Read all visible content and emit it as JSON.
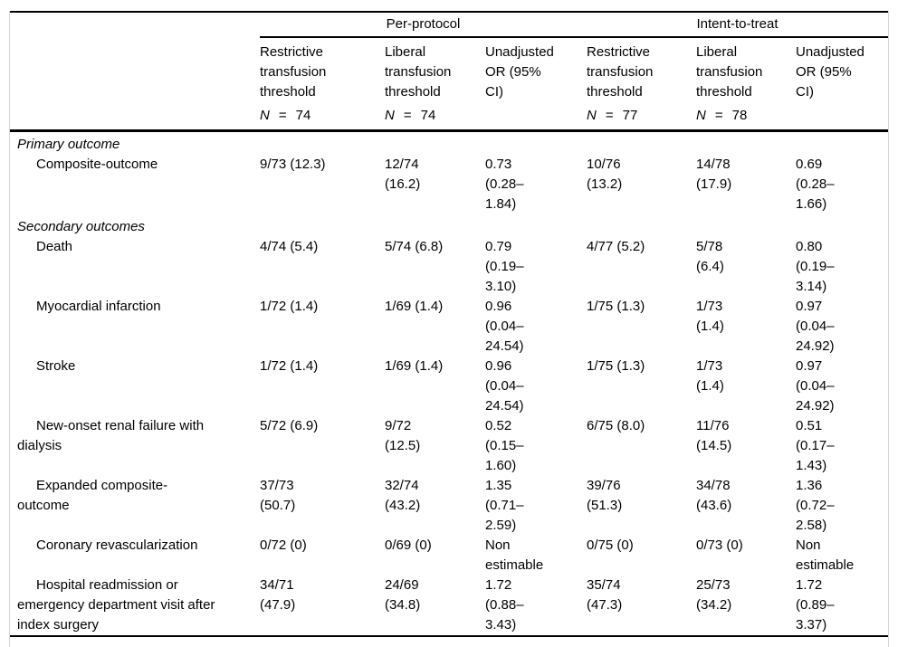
{
  "colors": {
    "background": "#ffffff",
    "rule": "#000000",
    "frame_border": "#d6d6d6",
    "text": "#000000"
  },
  "table": {
    "spanners": [
      {
        "label": "Per-protocol"
      },
      {
        "label": "Intent-to-treat"
      }
    ],
    "columns": [
      {
        "header": "Restrictive\ntransfusion\nthreshold",
        "n_label": "N",
        "n_eq": "=",
        "n_value": "74"
      },
      {
        "header": "Liberal\ntransfusion\nthreshold",
        "n_label": "N",
        "n_eq": "=",
        "n_value": "74"
      },
      {
        "header": "Unadjusted\nOR (95%\nCI)"
      },
      {
        "header": "Restrictive\ntransfusion\nthreshold",
        "n_label": "N",
        "n_eq": "=",
        "n_value": "77"
      },
      {
        "header": "Liberal\ntransfusion\nthreshold",
        "n_label": "N",
        "n_eq": "=",
        "n_value": "78"
      },
      {
        "header": "Unadjusted\nOR (95%\nCI)"
      }
    ],
    "sections": [
      {
        "title": "Primary outcome",
        "rows": [
          {
            "label": "Composite-outcome",
            "values": [
              "9/73 (12.3)",
              "12/74\n(16.2)",
              "0.73\n(0.28–\n1.84)",
              "10/76\n(13.2)",
              "14/78\n(17.9)",
              "0.69\n(0.28–\n1.66)"
            ]
          }
        ]
      },
      {
        "title": "Secondary outcomes",
        "rows": [
          {
            "label": "Death",
            "values": [
              "4/74 (5.4)",
              "5/74 (6.8)",
              "0.79\n(0.19–\n3.10)",
              "4/77 (5.2)",
              "5/78\n(6.4)",
              "0.80\n(0.19–\n3.14)"
            ]
          },
          {
            "label": "Myocardial infarction",
            "values": [
              "1/72 (1.4)",
              "1/69 (1.4)",
              "0.96\n(0.04–\n24.54)",
              "1/75 (1.3)",
              "1/73\n(1.4)",
              "0.97\n(0.04–\n24.92)"
            ]
          },
          {
            "label": "Stroke",
            "values": [
              "1/72 (1.4)",
              "1/69 (1.4)",
              "0.96\n(0.04–\n24.54)",
              "1/75 (1.3)",
              "1/73\n(1.4)",
              "0.97\n(0.04–\n24.92)"
            ]
          },
          {
            "label": "New-onset renal failure with\ndialysis",
            "values": [
              "5/72 (6.9)",
              "9/72\n(12.5)",
              "0.52\n(0.15–\n1.60)",
              "6/75 (8.0)",
              "11/76\n(14.5)",
              "0.51\n(0.17–\n1.43)"
            ]
          },
          {
            "label": "Expanded composite-\noutcome",
            "values": [
              "37/73\n(50.7)",
              "32/74\n(43.2)",
              "1.35\n(0.71–\n2.59)",
              "39/76\n(51.3)",
              "34/78\n(43.6)",
              "1.36\n(0.72–\n2.58)"
            ]
          },
          {
            "label": "Coronary revascularization",
            "values": [
              "0/72 (0)",
              "0/69 (0)",
              "Non\nestimable",
              "0/75 (0)",
              "0/73 (0)",
              "Non\nestimable"
            ]
          },
          {
            "label": "Hospital readmission or\nemergency department visit after\nindex surgery",
            "values": [
              "34/71\n(47.9)",
              "24/69\n(34.8)",
              "1.72\n(0.88–\n3.43)",
              "35/74\n(47.3)",
              "25/73\n(34.2)",
              "1.72\n(0.89–\n3.37)"
            ]
          }
        ]
      }
    ]
  }
}
